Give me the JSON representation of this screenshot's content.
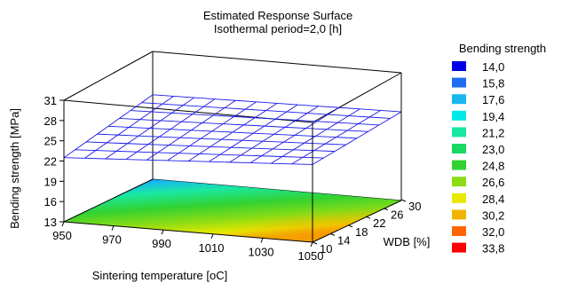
{
  "chart_data": {
    "type": "surface3d",
    "title": "Estimated Response Surface",
    "subtitle": "Isothermal period=2,0 [h]",
    "xlabel": "Sintering temperature [oC]",
    "ylabel": "WDB [%]",
    "zlabel": "Bending strength [MPa]",
    "x_ticks": [
      950,
      970,
      990,
      1010,
      1030,
      1050
    ],
    "y_ticks": [
      10,
      14,
      18,
      22,
      26,
      30
    ],
    "z_ticks": [
      13,
      16,
      19,
      22,
      25,
      28,
      31
    ],
    "xlim": [
      950,
      1050
    ],
    "ylim": [
      10,
      30
    ],
    "zlim": [
      13,
      31
    ],
    "grid": false,
    "surface": {
      "x": [
        950,
        1050
      ],
      "y": [
        10,
        30
      ],
      "z": [
        [
          22.5,
          25.5
        ],
        [
          24.5,
          26.0
        ]
      ]
    },
    "legend": {
      "title": "Bending strength",
      "placement": "right",
      "entries": [
        {
          "label": "14,0",
          "color": "#0000e6"
        },
        {
          "label": "15,8",
          "color": "#1e6ef0"
        },
        {
          "label": "17,6",
          "color": "#19b8f0"
        },
        {
          "label": "19,4",
          "color": "#00e8e8"
        },
        {
          "label": "21,2",
          "color": "#19e8a0"
        },
        {
          "label": "23,0",
          "color": "#19d864"
        },
        {
          "label": "24,8",
          "color": "#32d232"
        },
        {
          "label": "26,6",
          "color": "#8cdc14"
        },
        {
          "label": "28,4",
          "color": "#e8e800"
        },
        {
          "label": "30,2",
          "color": "#f0b400"
        },
        {
          "label": "32,0",
          "color": "#ff6400"
        },
        {
          "label": "33,8",
          "color": "#ff0000"
        }
      ]
    },
    "mesh_color": "#1a1aee"
  }
}
